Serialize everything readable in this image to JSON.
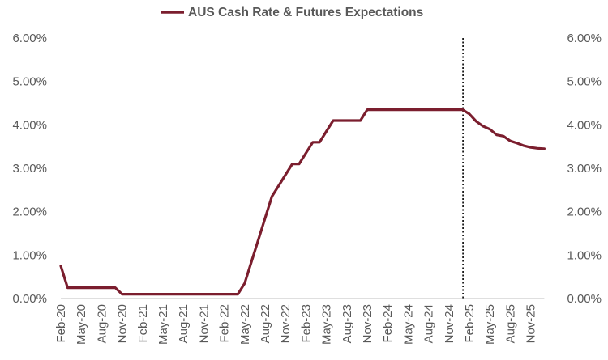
{
  "chart_data": {
    "type": "line",
    "title": "",
    "xlabel": "",
    "ylabel": "",
    "legend": {
      "position": "top-center",
      "entry": "AUS Cash Rate & Futures Expectations"
    },
    "x_tick_labels": [
      "Feb-20",
      "May-20",
      "Aug-20",
      "Nov-20",
      "Feb-21",
      "May-21",
      "Aug-21",
      "Nov-21",
      "Feb-22",
      "May-22",
      "Aug-22",
      "Nov-22",
      "Feb-23",
      "May-23",
      "Aug-23",
      "Nov-23",
      "Feb-24",
      "May-24",
      "Aug-24",
      "Nov-24",
      "Feb-25",
      "May-25",
      "Aug-25",
      "Nov-25"
    ],
    "y_tick_labels": [
      "0.00%",
      "1.00%",
      "2.00%",
      "3.00%",
      "4.00%",
      "5.00%",
      "6.00%"
    ],
    "ylim": [
      0,
      6
    ],
    "secondary_y_axis": true,
    "grid": false,
    "vertical_marker": {
      "x": "Jan-25",
      "style": "dotted"
    },
    "series": [
      {
        "name": "AUS Cash Rate & Futures Expectations",
        "color": "#7B1E2E",
        "x": [
          "Feb-20",
          "Mar-20",
          "Apr-20",
          "May-20",
          "Jun-20",
          "Jul-20",
          "Aug-20",
          "Sep-20",
          "Oct-20",
          "Nov-20",
          "Dec-20",
          "Jan-21",
          "Feb-21",
          "Mar-21",
          "Apr-21",
          "May-21",
          "Jun-21",
          "Jul-21",
          "Aug-21",
          "Sep-21",
          "Oct-21",
          "Nov-21",
          "Dec-21",
          "Jan-22",
          "Feb-22",
          "Mar-22",
          "Apr-22",
          "May-22",
          "Jun-22",
          "Jul-22",
          "Aug-22",
          "Sep-22",
          "Oct-22",
          "Nov-22",
          "Dec-22",
          "Jan-23",
          "Feb-23",
          "Mar-23",
          "Apr-23",
          "May-23",
          "Jun-23",
          "Jul-23",
          "Aug-23",
          "Sep-23",
          "Oct-23",
          "Nov-23",
          "Dec-23",
          "Jan-24",
          "Feb-24",
          "Mar-24",
          "Apr-24",
          "May-24",
          "Jun-24",
          "Jul-24",
          "Aug-24",
          "Sep-24",
          "Oct-24",
          "Nov-24",
          "Dec-24",
          "Jan-25",
          "Feb-25",
          "Mar-25",
          "Apr-25",
          "May-25",
          "Jun-25",
          "Jul-25",
          "Aug-25",
          "Sep-25",
          "Oct-25",
          "Nov-25",
          "Dec-25",
          "Jan-26"
        ],
        "values": [
          0.75,
          0.25,
          0.25,
          0.25,
          0.25,
          0.25,
          0.25,
          0.25,
          0.25,
          0.1,
          0.1,
          0.1,
          0.1,
          0.1,
          0.1,
          0.1,
          0.1,
          0.1,
          0.1,
          0.1,
          0.1,
          0.1,
          0.1,
          0.1,
          0.1,
          0.1,
          0.1,
          0.35,
          0.85,
          1.35,
          1.85,
          2.35,
          2.6,
          2.85,
          3.1,
          3.1,
          3.35,
          3.6,
          3.6,
          3.85,
          4.1,
          4.1,
          4.1,
          4.1,
          4.1,
          4.35,
          4.35,
          4.35,
          4.35,
          4.35,
          4.35,
          4.35,
          4.35,
          4.35,
          4.35,
          4.35,
          4.35,
          4.35,
          4.35,
          4.35,
          4.25,
          4.08,
          3.97,
          3.9,
          3.77,
          3.74,
          3.63,
          3.58,
          3.52,
          3.48,
          3.46,
          3.45
        ]
      }
    ]
  }
}
